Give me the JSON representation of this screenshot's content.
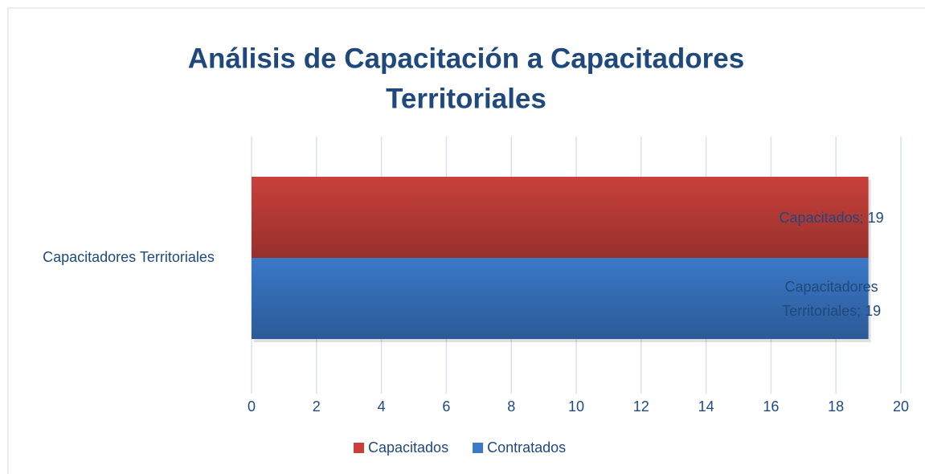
{
  "chart_data": {
    "type": "bar",
    "orientation": "horizontal",
    "title": [
      "Análisis de Capacitación a Capacitadores",
      "Territoriales"
    ],
    "categories": [
      "Capacitadores Territoriales"
    ],
    "series": [
      {
        "name": "Capacitados",
        "color": "#c9403b",
        "values": [
          19
        ],
        "value_labels": [
          "Capacitados; 19"
        ]
      },
      {
        "name": "Contratados",
        "color": "#3a78c8",
        "values": [
          19
        ],
        "value_labels": [
          "Capacitadores Territoriales; 19"
        ]
      }
    ],
    "xlim": [
      0,
      20
    ],
    "xticks": [
      0,
      2,
      4,
      6,
      8,
      10,
      12,
      14,
      16,
      18,
      20
    ],
    "grid": true,
    "legend": "bottom"
  }
}
